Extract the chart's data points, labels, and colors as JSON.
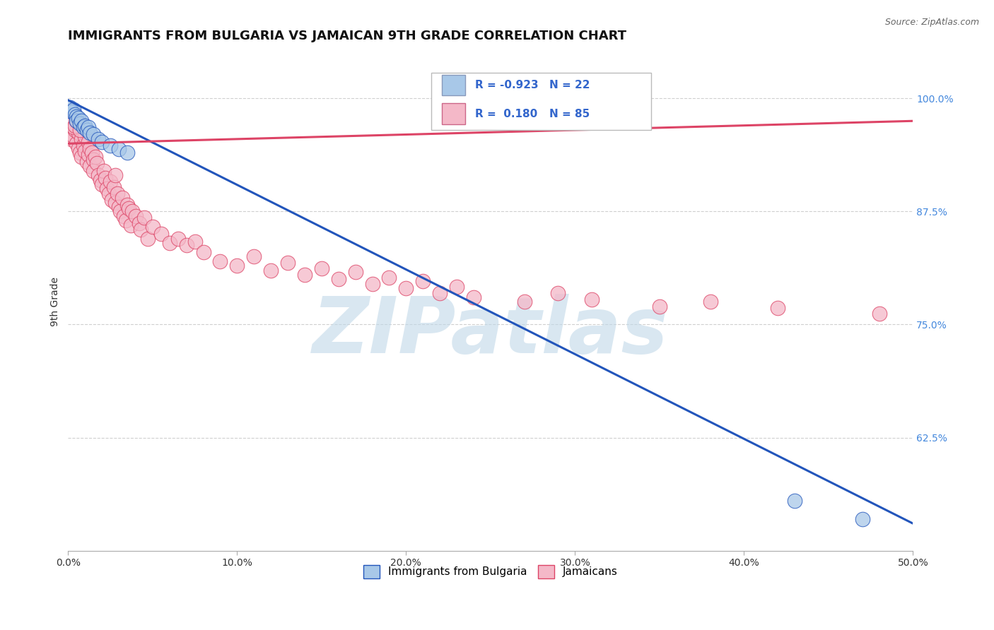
{
  "title": "IMMIGRANTS FROM BULGARIA VS JAMAICAN 9TH GRADE CORRELATION CHART",
  "source_text": "Source: ZipAtlas.com",
  "ylabel": "9th Grade",
  "xlim": [
    0.0,
    0.5
  ],
  "ylim": [
    0.5,
    1.05
  ],
  "xtick_labels": [
    "0.0%",
    "10.0%",
    "20.0%",
    "30.0%",
    "40.0%",
    "50.0%"
  ],
  "xtick_values": [
    0.0,
    0.1,
    0.2,
    0.3,
    0.4,
    0.5
  ],
  "ytick_labels": [
    "62.5%",
    "75.0%",
    "87.5%",
    "100.0%"
  ],
  "ytick_values": [
    0.625,
    0.75,
    0.875,
    1.0
  ],
  "legend_entries": [
    {
      "label": "Immigrants from Bulgaria",
      "color": "#a8c8e8",
      "R": "-0.923",
      "N": "22"
    },
    {
      "label": "Jamaicans",
      "color": "#f4b8c8",
      "R": "0.180",
      "N": "85"
    }
  ],
  "blue_scatter_x": [
    0.001,
    0.002,
    0.003,
    0.004,
    0.005,
    0.005,
    0.006,
    0.007,
    0.008,
    0.009,
    0.01,
    0.011,
    0.012,
    0.013,
    0.015,
    0.018,
    0.02,
    0.025,
    0.03,
    0.035,
    0.43,
    0.47
  ],
  "blue_scatter_y": [
    0.99,
    0.985,
    0.988,
    0.982,
    0.98,
    0.975,
    0.978,
    0.972,
    0.975,
    0.968,
    0.97,
    0.965,
    0.968,
    0.962,
    0.96,
    0.955,
    0.952,
    0.948,
    0.944,
    0.94,
    0.555,
    0.535
  ],
  "pink_scatter_x": [
    0.001,
    0.002,
    0.003,
    0.004,
    0.005,
    0.006,
    0.006,
    0.007,
    0.008,
    0.008,
    0.009,
    0.01,
    0.01,
    0.011,
    0.012,
    0.012,
    0.013,
    0.013,
    0.014,
    0.015,
    0.015,
    0.016,
    0.017,
    0.018,
    0.019,
    0.02,
    0.021,
    0.022,
    0.023,
    0.024,
    0.025,
    0.026,
    0.027,
    0.028,
    0.028,
    0.029,
    0.03,
    0.031,
    0.032,
    0.033,
    0.034,
    0.035,
    0.036,
    0.037,
    0.038,
    0.04,
    0.042,
    0.043,
    0.045,
    0.047,
    0.05,
    0.055,
    0.06,
    0.065,
    0.07,
    0.075,
    0.08,
    0.09,
    0.1,
    0.11,
    0.12,
    0.13,
    0.14,
    0.15,
    0.16,
    0.17,
    0.18,
    0.19,
    0.2,
    0.21,
    0.22,
    0.23,
    0.24,
    0.27,
    0.29,
    0.31,
    0.35,
    0.38,
    0.42,
    0.48,
    0.002,
    0.003,
    0.004,
    0.005,
    0.007
  ],
  "pink_scatter_y": [
    0.96,
    0.955,
    0.958,
    0.965,
    0.95,
    0.945,
    0.962,
    0.94,
    0.955,
    0.935,
    0.948,
    0.942,
    0.958,
    0.93,
    0.952,
    0.938,
    0.945,
    0.925,
    0.94,
    0.932,
    0.92,
    0.935,
    0.928,
    0.915,
    0.91,
    0.905,
    0.92,
    0.912,
    0.9,
    0.895,
    0.908,
    0.888,
    0.902,
    0.915,
    0.885,
    0.895,
    0.88,
    0.875,
    0.89,
    0.87,
    0.865,
    0.882,
    0.878,
    0.86,
    0.875,
    0.87,
    0.862,
    0.855,
    0.868,
    0.845,
    0.858,
    0.85,
    0.84,
    0.845,
    0.838,
    0.842,
    0.83,
    0.82,
    0.815,
    0.825,
    0.81,
    0.818,
    0.805,
    0.812,
    0.8,
    0.808,
    0.795,
    0.802,
    0.79,
    0.798,
    0.785,
    0.792,
    0.78,
    0.775,
    0.785,
    0.778,
    0.77,
    0.775,
    0.768,
    0.762,
    0.972,
    0.968,
    0.97,
    0.975,
    0.965
  ],
  "blue_line_x": [
    0.0,
    0.5
  ],
  "blue_line_y": [
    0.998,
    0.53
  ],
  "pink_line_x": [
    0.0,
    0.5
  ],
  "pink_line_y": [
    0.95,
    0.975
  ],
  "blue_line_color": "#2255bb",
  "pink_line_color": "#dd4466",
  "scatter_blue_color": "#a8c8e8",
  "scatter_pink_color": "#f4b8c8",
  "background_color": "#ffffff",
  "grid_color": "#d0d0d0",
  "watermark_text": "ZIPatlas",
  "watermark_color": "#c0d8e8",
  "title_fontsize": 13,
  "axis_label_fontsize": 10
}
